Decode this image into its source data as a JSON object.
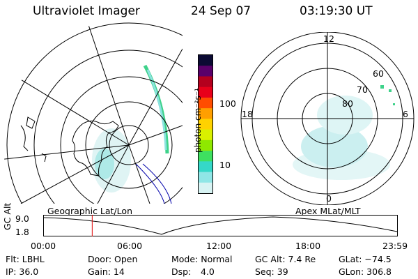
{
  "header": {
    "title": "Ultraviolet Imager",
    "date": "24 Sep 07",
    "time": "03:19:30 UT"
  },
  "colorbar": {
    "unit_label": "photon cm⁻²s⁻¹",
    "ticks": [
      "100",
      "10"
    ],
    "colors": [
      "#0b0a33",
      "#5a006a",
      "#b4001e",
      "#e8001a",
      "#ff4d00",
      "#ff9f00",
      "#ffd200",
      "#d9f000",
      "#8fe800",
      "#3ee060",
      "#35d8c8",
      "#8fe6e6",
      "#d7f3f3"
    ]
  },
  "polar_plot": {
    "labels": {
      "top": "12",
      "left": "18",
      "right": "6",
      "bottom": "0",
      "lat60": "60",
      "lat70": "70",
      "lat80": "80"
    }
  },
  "timeline": {
    "left_label": "Geographic Lat/Lon",
    "right_label": "Apex MLat/MLT",
    "y_axis_label": "GC Alt",
    "y_ticks": [
      "9.0",
      "1.8"
    ],
    "x_ticks": [
      "00:00",
      "06:00",
      "12:00",
      "18:00",
      "23:59"
    ],
    "current_marker_fraction": 0.1375
  },
  "info": {
    "flt": "Flt: LBHL",
    "ip": "IP: 36.0",
    "door": "Door: Open",
    "gain": "Gain: 14",
    "mode": "Mode: Normal",
    "dsp_label": "Dsp:",
    "dsp_value": "4.0",
    "gc_alt": "GC Alt: 7.4 Re",
    "seq": "Seq: 39",
    "glat": "GLat: −74.5",
    "glon": "GLon: 306.8"
  },
  "colors": {
    "aurora_low": "#d6f2f2",
    "aurora_mid": "#8ce3e0",
    "aurora_high": "#3ed28a",
    "marker": "#e00000",
    "grid": "#000000"
  }
}
